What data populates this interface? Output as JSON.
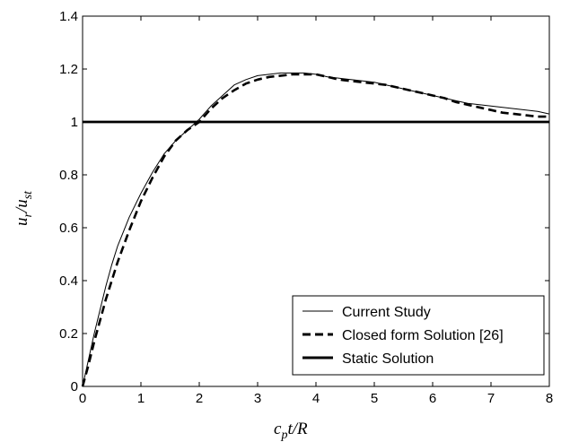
{
  "chart_data": {
    "type": "line",
    "title": "",
    "xlabel": {
      "base": "c",
      "sub": "p",
      "rest": "t/R"
    },
    "ylabel": {
      "base1": "u",
      "sub1": "r",
      "slash": "/",
      "base2": "u",
      "sub2": "st"
    },
    "xlim": [
      0,
      8
    ],
    "ylim": [
      0,
      1.4
    ],
    "xticks": [
      0,
      1,
      2,
      3,
      4,
      5,
      6,
      7,
      8
    ],
    "yticks": [
      0,
      0.2,
      0.4,
      0.6,
      0.8,
      1,
      1.2,
      1.4
    ],
    "ytick_labels": [
      "0",
      "0.2",
      "0.4",
      "0.6",
      "0.8",
      "1",
      "1.2",
      "1.4"
    ],
    "grid": false,
    "legend_position": "bottom-right",
    "series": [
      {
        "name": "Current Study",
        "style": "thin-solid",
        "x": [
          0,
          0.1,
          0.2,
          0.3,
          0.4,
          0.5,
          0.6,
          0.8,
          1.0,
          1.2,
          1.4,
          1.6,
          1.8,
          2.0,
          2.2,
          2.4,
          2.6,
          2.8,
          3.0,
          3.2,
          3.4,
          3.6,
          3.8,
          4.0,
          4.2,
          4.4,
          4.6,
          4.8,
          5.0,
          5.2,
          5.4,
          5.6,
          5.8,
          6.0,
          6.2,
          6.4,
          6.6,
          6.8,
          7.0,
          7.2,
          7.4,
          7.6,
          7.8,
          8.0
        ],
        "y": [
          0,
          0.1,
          0.2,
          0.29,
          0.38,
          0.46,
          0.53,
          0.64,
          0.73,
          0.81,
          0.88,
          0.93,
          0.97,
          1.01,
          1.06,
          1.1,
          1.14,
          1.16,
          1.175,
          1.18,
          1.185,
          1.185,
          1.185,
          1.18,
          1.17,
          1.165,
          1.16,
          1.155,
          1.15,
          1.14,
          1.13,
          1.12,
          1.11,
          1.1,
          1.09,
          1.08,
          1.07,
          1.065,
          1.06,
          1.055,
          1.05,
          1.045,
          1.04,
          1.03
        ]
      },
      {
        "name": "Closed form Solution [26]",
        "style": "dashed",
        "x": [
          0,
          0.1,
          0.2,
          0.3,
          0.4,
          0.5,
          0.6,
          0.8,
          1.0,
          1.2,
          1.4,
          1.6,
          1.8,
          2.0,
          2.2,
          2.4,
          2.6,
          2.8,
          3.0,
          3.2,
          3.4,
          3.6,
          3.8,
          4.0,
          4.2,
          4.4,
          4.6,
          4.8,
          5.0,
          5.2,
          5.4,
          5.6,
          5.8,
          6.0,
          6.2,
          6.4,
          6.6,
          6.8,
          7.0,
          7.2,
          7.4,
          7.6,
          7.8,
          8.0
        ],
        "y": [
          0,
          0.08,
          0.17,
          0.25,
          0.33,
          0.4,
          0.47,
          0.59,
          0.7,
          0.79,
          0.87,
          0.93,
          0.97,
          1.0,
          1.05,
          1.09,
          1.12,
          1.145,
          1.16,
          1.17,
          1.175,
          1.18,
          1.18,
          1.18,
          1.17,
          1.16,
          1.155,
          1.15,
          1.145,
          1.14,
          1.13,
          1.12,
          1.11,
          1.1,
          1.09,
          1.075,
          1.065,
          1.055,
          1.045,
          1.035,
          1.03,
          1.025,
          1.02,
          1.02
        ]
      },
      {
        "name": "Static Solution",
        "style": "thick-solid",
        "x": [
          0,
          8
        ],
        "y": [
          1,
          1
        ]
      }
    ]
  }
}
